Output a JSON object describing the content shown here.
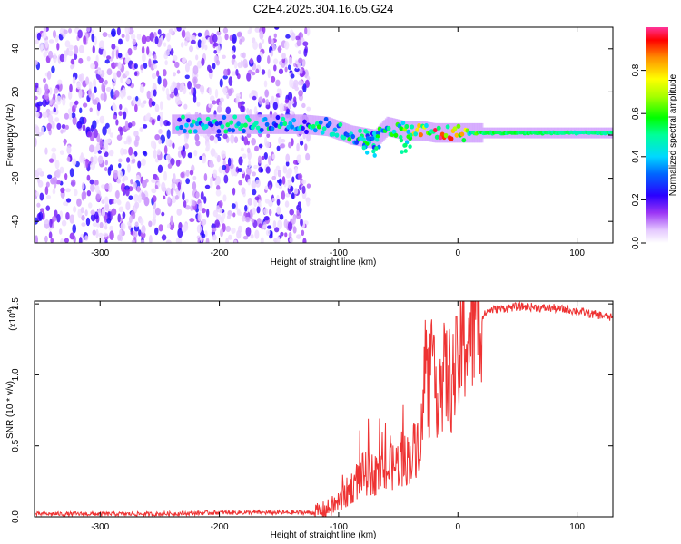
{
  "title": "C2E4.2025.304.16.05.G24",
  "chart_data": [
    {
      "type": "heatmap",
      "name": "spectrogram",
      "xlabel": "Height of straight line (km)",
      "ylabel": "Frequency (Hz)",
      "xlim": [
        -355,
        130
      ],
      "ylim": [
        -50,
        50
      ],
      "xticks": [
        -300,
        -200,
        -100,
        0,
        100
      ],
      "xtick_labels": [
        "-300",
        "-200",
        "-100",
        "0",
        "100"
      ],
      "yticks": [
        -40,
        -20,
        0,
        20,
        40
      ],
      "ytick_labels": [
        "-40",
        "-20",
        "0",
        "20",
        "40"
      ],
      "colorbar": {
        "label": "Normalized spectral amplitude",
        "range": [
          0,
          1
        ],
        "ticks": [
          0.0,
          0.2,
          0.4,
          0.6,
          0.8
        ],
        "tick_labels": [
          "0.0",
          "0.2",
          "0.4",
          "0.6",
          "0.8"
        ]
      },
      "noise_region_x": [
        -355,
        -125
      ],
      "ridge": [
        {
          "x": -130,
          "f": 5,
          "amp": 0.45
        },
        {
          "x": -110,
          "f": 4,
          "amp": 0.5
        },
        {
          "x": -90,
          "f": 0,
          "amp": 0.5
        },
        {
          "x": -70,
          "f": -2,
          "amp": 0.5
        },
        {
          "x": -60,
          "f": 4,
          "amp": 0.55
        },
        {
          "x": -45,
          "f": 2,
          "amp": 0.6
        },
        {
          "x": -30,
          "f": 2,
          "amp": 0.75
        },
        {
          "x": -20,
          "f": 1,
          "amp": 0.85
        },
        {
          "x": 0,
          "f": 1,
          "amp": 0.85
        },
        {
          "x": 20,
          "f": 1,
          "amp": 0.55
        },
        {
          "x": 60,
          "f": 1,
          "amp": 0.55
        },
        {
          "x": 100,
          "f": 1,
          "amp": 0.5
        },
        {
          "x": 130,
          "f": 1,
          "amp": 0.5
        }
      ]
    },
    {
      "type": "line",
      "name": "snr",
      "xlabel": "Height of straight line (km)",
      "ylabel": "SNR (10 * v/v)",
      "exponent_label": "(x10",
      "exponent_power": "4",
      "exponent_close": ")",
      "xlim": [
        -355,
        130
      ],
      "ylim": [
        0,
        1.52
      ],
      "xticks": [
        -300,
        -200,
        -100,
        0,
        100
      ],
      "xtick_labels": [
        "-300",
        "-200",
        "-100",
        "0",
        "100"
      ],
      "yticks": [
        0.0,
        0.5,
        1.0,
        1.5
      ],
      "ytick_labels": [
        "0.0",
        "0.5",
        "1.0",
        "1.5"
      ],
      "color": "#ee3333",
      "series": [
        {
          "name": "SNR",
          "x": [
            -355,
            -300,
            -250,
            -200,
            -150,
            -120,
            -110,
            -100,
            -90,
            -80,
            -70,
            -60,
            -50,
            -40,
            -35,
            -30,
            -27,
            -25,
            -22,
            -20,
            -15,
            -10,
            -5,
            0,
            5,
            10,
            15,
            20,
            25,
            30,
            40,
            50,
            60,
            70,
            80,
            90,
            100,
            110,
            120,
            130
          ],
          "y": [
            0.02,
            0.02,
            0.02,
            0.03,
            0.03,
            0.03,
            0.05,
            0.1,
            0.2,
            0.3,
            0.3,
            0.32,
            0.38,
            0.42,
            0.5,
            0.6,
            1.2,
            0.8,
            1.1,
            0.9,
            0.95,
            1.0,
            0.95,
            1.05,
            1.25,
            1.3,
            1.35,
            1.4,
            1.45,
            1.46,
            1.47,
            1.48,
            1.48,
            1.47,
            1.47,
            1.46,
            1.45,
            1.43,
            1.42,
            1.4
          ]
        }
      ]
    }
  ]
}
